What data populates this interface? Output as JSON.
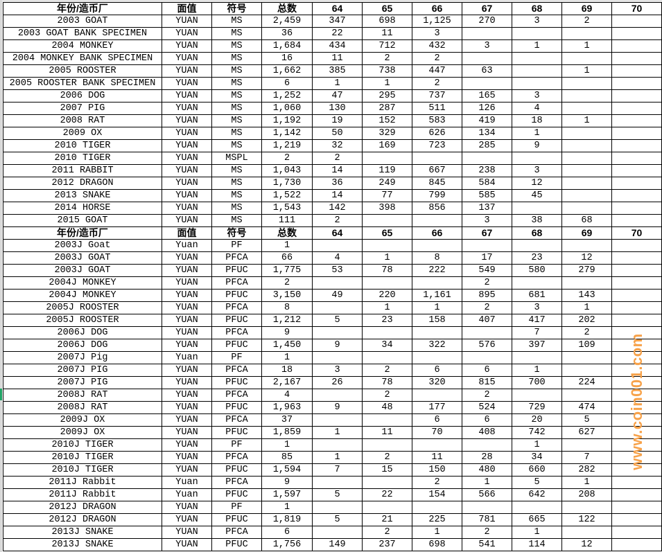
{
  "columns": [
    "年份/造币厂",
    "面值",
    "符号",
    "总数",
    "64",
    "65",
    "66",
    "67",
    "68",
    "69",
    "70"
  ],
  "rows": [
    {
      "header": true,
      "cells": [
        "年份/造币厂",
        "面值",
        "符号",
        "总数",
        "64",
        "65",
        "66",
        "67",
        "68",
        "69",
        "70"
      ]
    },
    {
      "cells": [
        "2003 GOAT",
        "YUAN",
        "MS",
        "2,459",
        "347",
        "698",
        "1,125",
        "270",
        "3",
        "2",
        ""
      ]
    },
    {
      "cells": [
        "2003 GOAT BANK SPECIMEN",
        "YUAN",
        "MS",
        "36",
        "22",
        "11",
        "3",
        "",
        "",
        "",
        ""
      ]
    },
    {
      "cells": [
        "2004 MONKEY",
        "YUAN",
        "MS",
        "1,684",
        "434",
        "712",
        "432",
        "3",
        "1",
        "1",
        ""
      ]
    },
    {
      "cells": [
        "2004 MONKEY BANK SPECIMEN",
        "YUAN",
        "MS",
        "16",
        "11",
        "2",
        "2",
        "",
        "",
        "",
        ""
      ]
    },
    {
      "cells": [
        "2005 ROOSTER",
        "YUAN",
        "MS",
        "1,662",
        "385",
        "738",
        "447",
        "63",
        "",
        "1",
        ""
      ]
    },
    {
      "cells": [
        "2005 ROOSTER BANK SPECIMEN",
        "YUAN",
        "MS",
        "6",
        "1",
        "1",
        "2",
        "",
        "",
        "",
        ""
      ]
    },
    {
      "cells": [
        "2006 DOG",
        "YUAN",
        "MS",
        "1,252",
        "47",
        "295",
        "737",
        "165",
        "3",
        "",
        ""
      ]
    },
    {
      "cells": [
        "2007 PIG",
        "YUAN",
        "MS",
        "1,060",
        "130",
        "287",
        "511",
        "126",
        "4",
        "",
        ""
      ]
    },
    {
      "cells": [
        "2008 RAT",
        "YUAN",
        "MS",
        "1,192",
        "19",
        "152",
        "583",
        "419",
        "18",
        "1",
        ""
      ]
    },
    {
      "cells": [
        "2009 OX",
        "YUAN",
        "MS",
        "1,142",
        "50",
        "329",
        "626",
        "134",
        "1",
        "",
        ""
      ]
    },
    {
      "cells": [
        "2010 TIGER",
        "YUAN",
        "MS",
        "1,219",
        "32",
        "169",
        "723",
        "285",
        "9",
        "",
        ""
      ]
    },
    {
      "cells": [
        "2010 TIGER",
        "YUAN",
        "MSPL",
        "2",
        "2",
        "",
        "",
        "",
        "",
        "",
        ""
      ]
    },
    {
      "cells": [
        "2011 RABBIT",
        "YUAN",
        "MS",
        "1,043",
        "14",
        "119",
        "667",
        "238",
        "3",
        "",
        ""
      ]
    },
    {
      "cells": [
        "2012 DRAGON",
        "YUAN",
        "MS",
        "1,730",
        "36",
        "249",
        "845",
        "584",
        "12",
        "",
        ""
      ]
    },
    {
      "cells": [
        "2013 SNAKE",
        "YUAN",
        "MS",
        "1,522",
        "14",
        "77",
        "799",
        "585",
        "45",
        "",
        ""
      ]
    },
    {
      "cells": [
        "2014 HORSE",
        "YUAN",
        "MS",
        "1,543",
        "142",
        "398",
        "856",
        "137",
        "",
        "",
        ""
      ]
    },
    {
      "cells": [
        "2015 GOAT",
        "YUAN",
        "MS",
        "111",
        "2",
        "",
        "",
        "3",
        "38",
        "68",
        ""
      ]
    },
    {
      "header": true,
      "cells": [
        "年份/造币厂",
        "面值",
        "符号",
        "总数",
        "64",
        "65",
        "66",
        "67",
        "68",
        "69",
        "70"
      ]
    },
    {
      "cells": [
        "2003J Goat",
        "Yuan",
        "PF",
        "1",
        "",
        "",
        "",
        "",
        "",
        "",
        ""
      ]
    },
    {
      "cells": [
        "2003J GOAT",
        "YUAN",
        "PFCA",
        "66",
        "4",
        "1",
        "8",
        "17",
        "23",
        "12",
        ""
      ]
    },
    {
      "cells": [
        "2003J GOAT",
        "YUAN",
        "PFUC",
        "1,775",
        "53",
        "78",
        "222",
        "549",
        "580",
        "279",
        ""
      ]
    },
    {
      "cells": [
        "2004J MONKEY",
        "YUAN",
        "PFCA",
        "2",
        "",
        "",
        "",
        "2",
        "",
        "",
        ""
      ]
    },
    {
      "cells": [
        "2004J MONKEY",
        "YUAN",
        "PFUC",
        "3,150",
        "49",
        "220",
        "1,161",
        "895",
        "681",
        "143",
        ""
      ]
    },
    {
      "cells": [
        "2005J ROOSTER",
        "YUAN",
        "PFCA",
        "8",
        "",
        "1",
        "1",
        "2",
        "3",
        "1",
        ""
      ]
    },
    {
      "cells": [
        "2005J ROOSTER",
        "YUAN",
        "PFUC",
        "1,212",
        "5",
        "23",
        "158",
        "407",
        "417",
        "202",
        ""
      ]
    },
    {
      "cells": [
        "2006J DOG",
        "YUAN",
        "PFCA",
        "9",
        "",
        "",
        "",
        "",
        "7",
        "2",
        ""
      ]
    },
    {
      "cells": [
        "2006J DOG",
        "YUAN",
        "PFUC",
        "1,450",
        "9",
        "34",
        "322",
        "576",
        "397",
        "109",
        ""
      ]
    },
    {
      "cells": [
        "2007J Pig",
        "Yuan",
        "PF",
        "1",
        "",
        "",
        "",
        "",
        "",
        "",
        ""
      ]
    },
    {
      "cells": [
        "2007J PIG",
        "YUAN",
        "PFCA",
        "18",
        "3",
        "2",
        "6",
        "6",
        "1",
        "",
        ""
      ]
    },
    {
      "cells": [
        "2007J PIG",
        "YUAN",
        "PFUC",
        "2,167",
        "26",
        "78",
        "320",
        "815",
        "700",
        "224",
        ""
      ]
    },
    {
      "cells": [
        "2008J RAT",
        "YUAN",
        "PFCA",
        "4",
        "",
        "2",
        "",
        "2",
        "",
        "",
        ""
      ]
    },
    {
      "cells": [
        "2008J RAT",
        "YUAN",
        "PFUC",
        "1,963",
        "9",
        "48",
        "177",
        "524",
        "729",
        "474",
        ""
      ]
    },
    {
      "cells": [
        "2009J OX",
        "YUAN",
        "PFCA",
        "37",
        "",
        "",
        "6",
        "6",
        "20",
        "5",
        ""
      ]
    },
    {
      "cells": [
        "2009J OX",
        "YUAN",
        "PFUC",
        "1,859",
        "1",
        "11",
        "70",
        "408",
        "742",
        "627",
        ""
      ]
    },
    {
      "cells": [
        "2010J TIGER",
        "YUAN",
        "PF",
        "1",
        "",
        "",
        "",
        "",
        "1",
        "",
        ""
      ]
    },
    {
      "cells": [
        "2010J TIGER",
        "YUAN",
        "PFCA",
        "85",
        "1",
        "2",
        "11",
        "28",
        "34",
        "7",
        ""
      ]
    },
    {
      "cells": [
        "2010J TIGER",
        "YUAN",
        "PFUC",
        "1,594",
        "7",
        "15",
        "150",
        "480",
        "660",
        "282",
        ""
      ]
    },
    {
      "cells": [
        "2011J Rabbit",
        "Yuan",
        "PFCA",
        "9",
        "",
        "",
        "2",
        "1",
        "5",
        "1",
        ""
      ]
    },
    {
      "cells": [
        "2011J Rabbit",
        "Yuan",
        "PFUC",
        "1,597",
        "5",
        "22",
        "154",
        "566",
        "642",
        "208",
        ""
      ]
    },
    {
      "cells": [
        "2012J DRAGON",
        "YUAN",
        "PF",
        "1",
        "",
        "",
        "",
        "",
        "",
        "",
        ""
      ]
    },
    {
      "cells": [
        "2012J DRAGON",
        "YUAN",
        "PFUC",
        "1,819",
        "5",
        "21",
        "225",
        "781",
        "665",
        "122",
        ""
      ]
    },
    {
      "cells": [
        "2013J SNAKE",
        "YUAN",
        "PFCA",
        "6",
        "",
        "2",
        "1",
        "2",
        "1",
        "",
        ""
      ]
    },
    {
      "cells": [
        "2013J SNAKE",
        "YUAN",
        "PFUC",
        "1,756",
        "149",
        "237",
        "698",
        "541",
        "114",
        "12",
        ""
      ]
    }
  ],
  "watermark": "www.coin001.com",
  "colors": {
    "watermark": "#f7a24a",
    "selection": "#21a366",
    "grid": "#000000"
  }
}
